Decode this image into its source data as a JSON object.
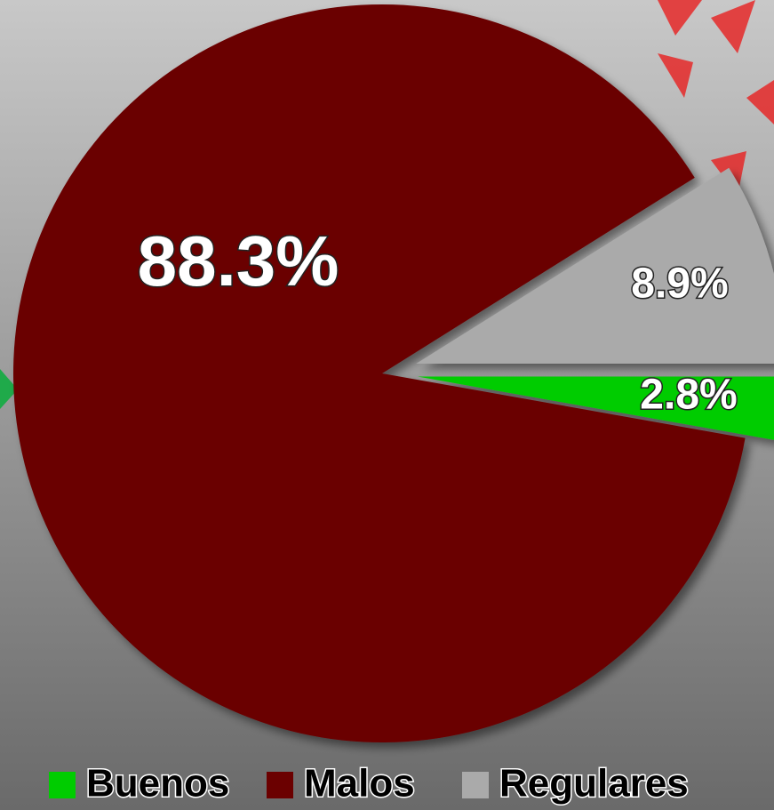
{
  "chart_data": {
    "type": "pie",
    "categories": [
      "Buenos",
      "Malos",
      "Regulares"
    ],
    "values": [
      2.8,
      88.3,
      8.9
    ],
    "value_labels": [
      "2.8%",
      "88.3%",
      "8.9%"
    ],
    "colors": [
      "#00cc00",
      "#6b0000",
      "#aaaaaa"
    ],
    "legend": "bottom"
  }
}
